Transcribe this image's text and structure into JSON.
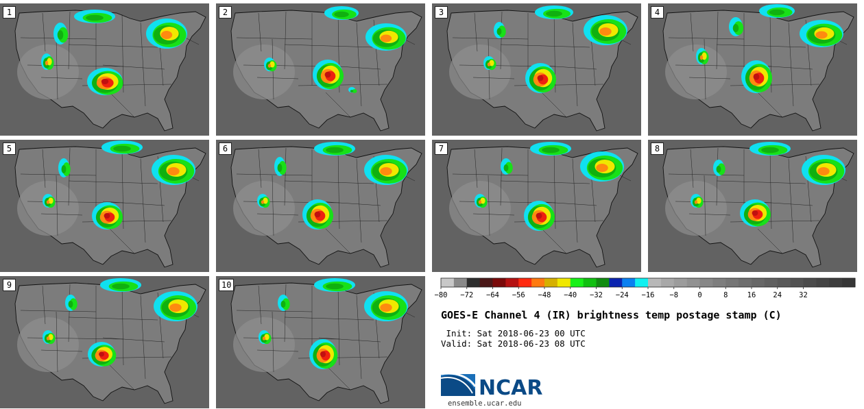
{
  "panels": [
    {
      "label": "1"
    },
    {
      "label": "2"
    },
    {
      "label": "3"
    },
    {
      "label": "4"
    },
    {
      "label": "5"
    },
    {
      "label": "6"
    },
    {
      "label": "7"
    },
    {
      "label": "8"
    },
    {
      "label": "9"
    },
    {
      "label": "10"
    }
  ],
  "colorbar": {
    "colors": [
      "#c8c8c8",
      "#8a8a8a",
      "#2e2e2e",
      "#4a1818",
      "#7a0a0a",
      "#b51212",
      "#ff2a10",
      "#ff7a10",
      "#d6b000",
      "#f0e800",
      "#18f018",
      "#10c010",
      "#108c10",
      "#0b24b0",
      "#0a80f0",
      "#10f0f0",
      "#b8b8b8",
      "#a8a8a8",
      "#9c9c9c",
      "#919191",
      "#878787",
      "#7e7e7e",
      "#767676",
      "#6e6e6e",
      "#676767",
      "#606060",
      "#595959",
      "#525252",
      "#4b4b4b",
      "#444444",
      "#3d3d3d",
      "#363636"
    ],
    "tick_labels": [
      "−80",
      "−72",
      "−64",
      "−56",
      "−48",
      "−40",
      "−32",
      "−24",
      "−16",
      "−8",
      "0",
      "8",
      "16",
      "24",
      "32"
    ],
    "tick_min": -80,
    "tick_step": 8,
    "range": [
      -80,
      48
    ]
  },
  "title": "GOES-E Channel 4 (IR) brightness temp postage stamp (C)",
  "init_text": " Init: Sat 2018-06-23 00 UTC",
  "valid_text": "Valid: Sat 2018-06-23 08 UTC",
  "logo": {
    "text": "NCAR",
    "url": "ensemble.ucar.edu"
  }
}
